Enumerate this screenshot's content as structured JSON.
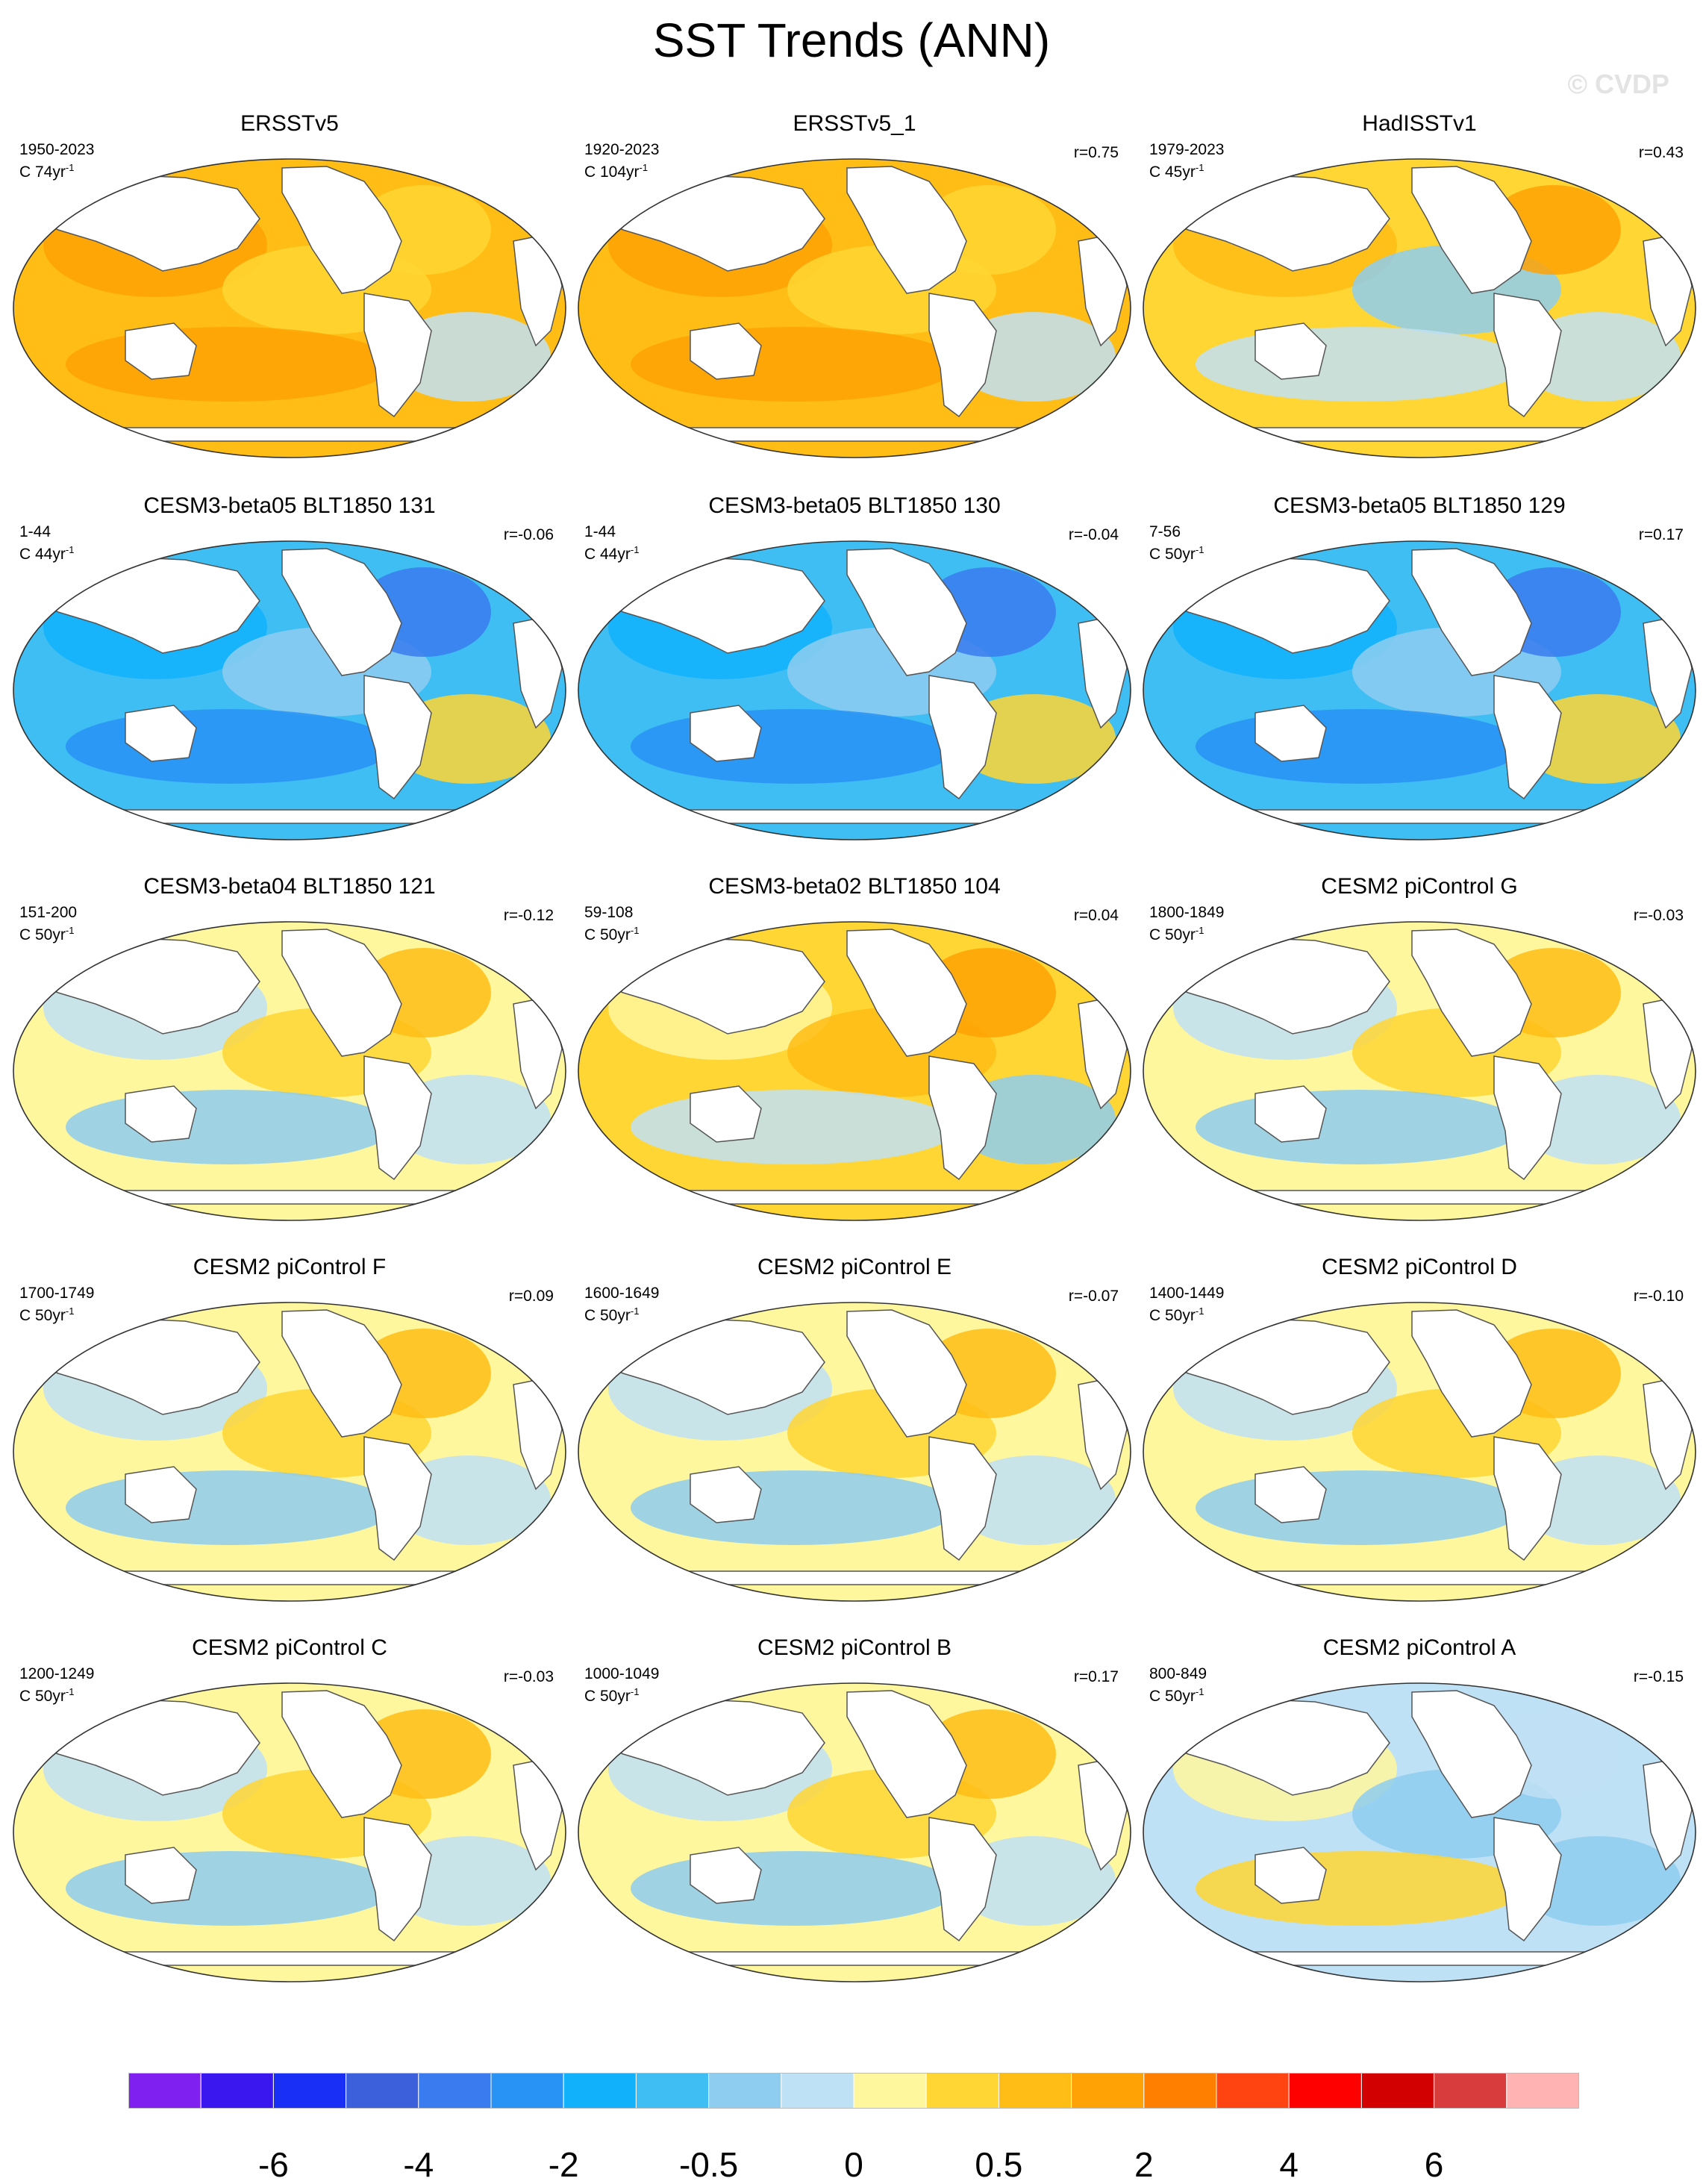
{
  "figure": {
    "title": "SST Trends (ANN)",
    "watermark": "© CVDP"
  },
  "panels": [
    {
      "title": "ERSSTv5",
      "years": "1950-2023",
      "unit_prefix": "C ",
      "unit_period": "74yr",
      "unit_exp": "-1",
      "corr": "",
      "theme": "warm"
    },
    {
      "title": "ERSSTv5_1",
      "years": "1920-2023",
      "unit_prefix": "C ",
      "unit_period": "104yr",
      "unit_exp": "-1",
      "corr": "r=0.75",
      "theme": "warm"
    },
    {
      "title": "HadISSTv1",
      "years": "1979-2023",
      "unit_prefix": "C ",
      "unit_period": "45yr",
      "unit_exp": "-1",
      "corr": "r=0.43",
      "theme": "mixedwarm"
    },
    {
      "title": "CESM3-beta05 BLT1850 131",
      "years": "1-44",
      "unit_prefix": "C ",
      "unit_period": "44yr",
      "unit_exp": "-1",
      "corr": "r=-0.06",
      "theme": "cold"
    },
    {
      "title": "CESM3-beta05 BLT1850 130",
      "years": "1-44",
      "unit_prefix": "C ",
      "unit_period": "44yr",
      "unit_exp": "-1",
      "corr": "r=-0.04",
      "theme": "cold"
    },
    {
      "title": "CESM3-beta05 BLT1850 129",
      "years": "7-56",
      "unit_prefix": "C ",
      "unit_period": "50yr",
      "unit_exp": "-1",
      "corr": "r=0.17",
      "theme": "cold"
    },
    {
      "title": "CESM3-beta04 BLT1850 121",
      "years": "151-200",
      "unit_prefix": "C ",
      "unit_period": "50yr",
      "unit_exp": "-1",
      "corr": "r=-0.12",
      "theme": "neutral"
    },
    {
      "title": "CESM3-beta02 BLT1850 104",
      "years": "59-108",
      "unit_prefix": "C ",
      "unit_period": "50yr",
      "unit_exp": "-1",
      "corr": "r=0.04",
      "theme": "neutralwarm"
    },
    {
      "title": "CESM2 piControl G",
      "years": "1800-1849",
      "unit_prefix": "C ",
      "unit_period": "50yr",
      "unit_exp": "-1",
      "corr": "r=-0.03",
      "theme": "neutral"
    },
    {
      "title": "CESM2 piControl F",
      "years": "1700-1749",
      "unit_prefix": "C ",
      "unit_period": "50yr",
      "unit_exp": "-1",
      "corr": "r=0.09",
      "theme": "neutral"
    },
    {
      "title": "CESM2 piControl E",
      "years": "1600-1649",
      "unit_prefix": "C ",
      "unit_period": "50yr",
      "unit_exp": "-1",
      "corr": "r=-0.07",
      "theme": "neutral"
    },
    {
      "title": "CESM2 piControl D",
      "years": "1400-1449",
      "unit_prefix": "C ",
      "unit_period": "50yr",
      "unit_exp": "-1",
      "corr": "r=-0.10",
      "theme": "neutral"
    },
    {
      "title": "CESM2 piControl C",
      "years": "1200-1249",
      "unit_prefix": "C ",
      "unit_period": "50yr",
      "unit_exp": "-1",
      "corr": "r=-0.03",
      "theme": "neutral"
    },
    {
      "title": "CESM2 piControl B",
      "years": "1000-1049",
      "unit_prefix": "C ",
      "unit_period": "50yr",
      "unit_exp": "-1",
      "corr": "r=0.17",
      "theme": "neutral"
    },
    {
      "title": "CESM2 piControl A",
      "years": "800-849",
      "unit_prefix": "C ",
      "unit_period": "50yr",
      "unit_exp": "-1",
      "corr": "r=-0.15",
      "theme": "neutralcool"
    }
  ],
  "colorbar": {
    "colors": [
      "#7f1ff0",
      "#3a16ef",
      "#1a2ff5",
      "#3c5fdc",
      "#3a7bef",
      "#2892f5",
      "#11b2fb",
      "#3ebef3",
      "#8ecdf0",
      "#bfe1f5",
      "#fff79e",
      "#ffd633",
      "#ffbd15",
      "#ffa205",
      "#ff7f00",
      "#ff4412",
      "#ff0000",
      "#d20000",
      "#d83c3c",
      "#ffb3b3"
    ],
    "labels": [
      "-6",
      "-4",
      "-2",
      "-0.5",
      "0",
      "0.5",
      "2",
      "4",
      "6"
    ]
  },
  "theme_colors": {
    "warm": {
      "base": "#ffbd15",
      "blobs": [
        "#ffa205",
        "#ffd633",
        "#ffa205",
        "#ffd633",
        "#bfe1f5"
      ]
    },
    "mixedwarm": {
      "base": "#ffd633",
      "blobs": [
        "#ffbd15",
        "#8ecdf0",
        "#bfe1f5",
        "#ffa205",
        "#bfe1f5"
      ]
    },
    "cold": {
      "base": "#3ebef3",
      "blobs": [
        "#11b2fb",
        "#8ecdf0",
        "#2892f5",
        "#3a7bef",
        "#ffd633"
      ]
    },
    "neutral": {
      "base": "#fff79e",
      "blobs": [
        "#bfe1f5",
        "#ffd633",
        "#8ecdf0",
        "#ffbd15",
        "#bfe1f5"
      ]
    },
    "neutralwarm": {
      "base": "#ffd633",
      "blobs": [
        "#fff79e",
        "#ffbd15",
        "#bfe1f5",
        "#ffa205",
        "#8ecdf0"
      ]
    },
    "neutralcool": {
      "base": "#bfe1f5",
      "blobs": [
        "#fff79e",
        "#8ecdf0",
        "#ffd633",
        "#bfe1f5",
        "#8ecdf0"
      ]
    }
  }
}
